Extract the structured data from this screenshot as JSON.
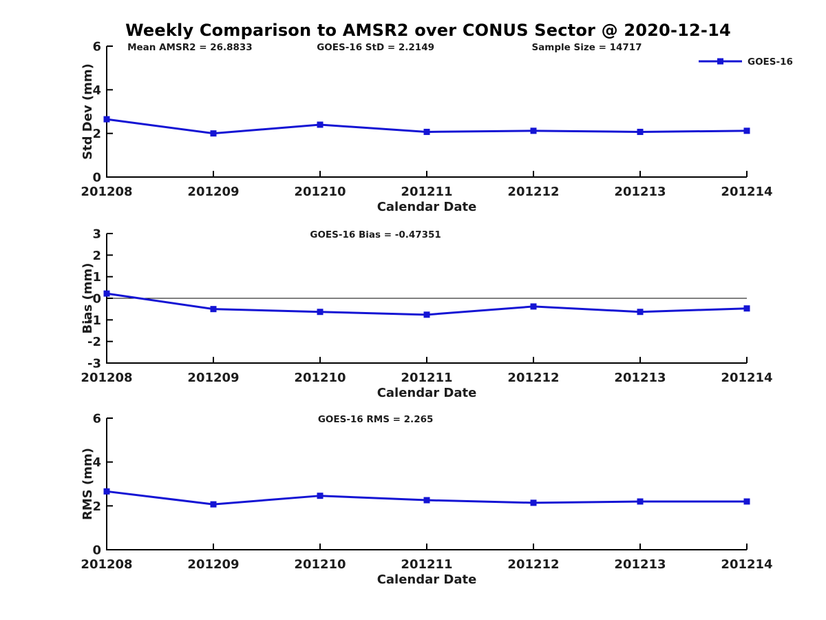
{
  "title": "Weekly Comparison to AMSR2 over CONUS Sector @ 2020-12-14",
  "colors": {
    "line": "#1414d4",
    "axis": "#000000",
    "text": "#1c1c1c",
    "background": "#ffffff"
  },
  "legend": {
    "label": "GOES-16"
  },
  "xlabel": "Calendar Date",
  "chart_data": [
    {
      "type": "line",
      "name": "std-dev",
      "title": "",
      "categories": [
        "201208",
        "201209",
        "201210",
        "201211",
        "201212",
        "201213",
        "201214"
      ],
      "series": [
        {
          "name": "GOES-16",
          "values": [
            2.65,
            2.0,
            2.4,
            2.07,
            2.12,
            2.07,
            2.12
          ]
        }
      ],
      "xlabel": "Calendar Date",
      "ylabel": "Std Dev (mm)",
      "ylim": [
        0,
        6
      ],
      "yticks": [
        0,
        2,
        4,
        6
      ],
      "grid": false,
      "legend_position": "top-right",
      "annotations": [
        "Mean AMSR2 = 26.8833",
        "GOES-16 StD = 2.2149",
        "Sample Size = 14717"
      ],
      "zero_line": false,
      "show_legend": true
    },
    {
      "type": "line",
      "name": "bias",
      "title": "",
      "categories": [
        "201208",
        "201209",
        "201210",
        "201211",
        "201212",
        "201213",
        "201214"
      ],
      "series": [
        {
          "name": "GOES-16",
          "values": [
            0.22,
            -0.5,
            -0.63,
            -0.76,
            -0.38,
            -0.63,
            -0.47
          ]
        }
      ],
      "xlabel": "Calendar Date",
      "ylabel": "Bias (mm)",
      "ylim": [
        -3,
        3
      ],
      "yticks": [
        -3,
        -2,
        -1,
        0,
        1,
        2,
        3
      ],
      "grid": false,
      "annotations": [
        "GOES-16 Bias  = -0.47351"
      ],
      "zero_line": true,
      "show_legend": false
    },
    {
      "type": "line",
      "name": "rms",
      "title": "",
      "categories": [
        "201208",
        "201209",
        "201210",
        "201211",
        "201212",
        "201213",
        "201214"
      ],
      "series": [
        {
          "name": "GOES-16",
          "values": [
            2.66,
            2.07,
            2.46,
            2.26,
            2.14,
            2.2,
            2.2
          ]
        }
      ],
      "xlabel": "Calendar Date",
      "ylabel": "RMS (mm)",
      "ylim": [
        0,
        6
      ],
      "yticks": [
        0,
        2,
        4,
        6
      ],
      "grid": false,
      "annotations": [
        "GOES-16 RMS = 2.265"
      ],
      "zero_line": false,
      "show_legend": false
    }
  ]
}
